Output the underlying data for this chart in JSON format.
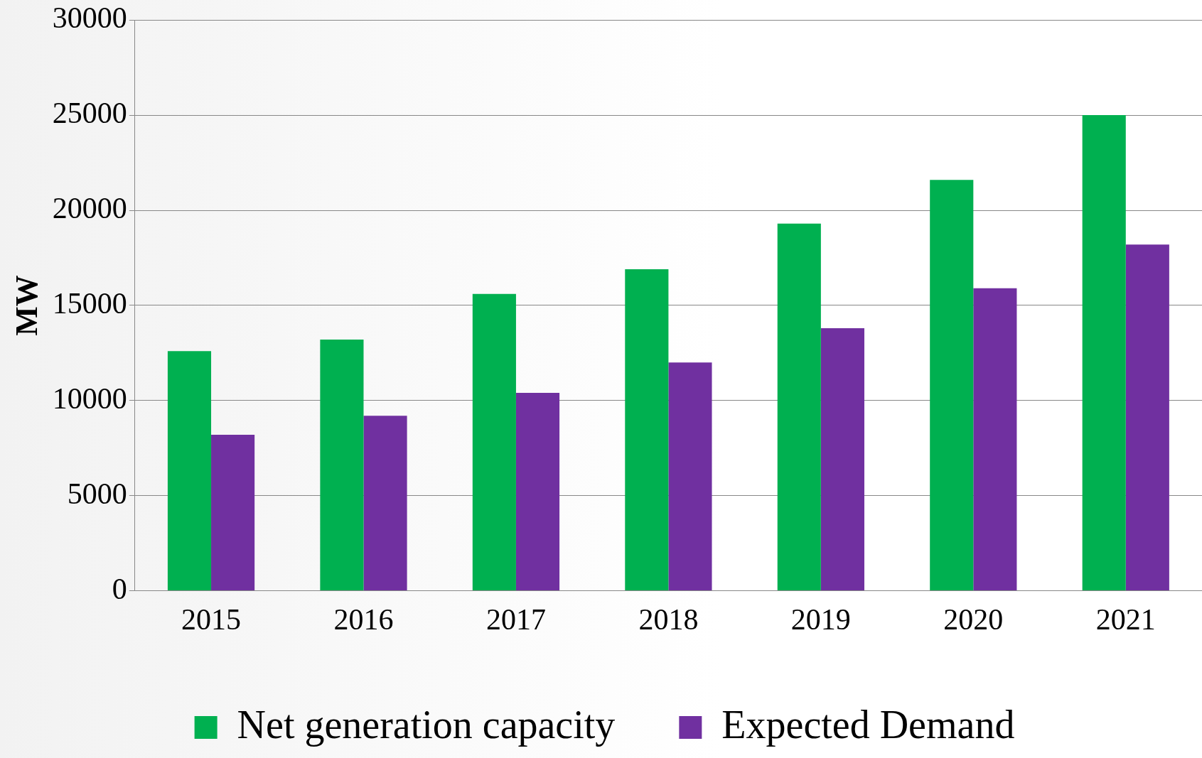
{
  "chart_data": {
    "type": "bar",
    "ylabel": "MW",
    "categories": [
      "2015",
      "2016",
      "2017",
      "2018",
      "2019",
      "2020",
      "2021"
    ],
    "series": [
      {
        "name": "Net generation capacity",
        "color": "#00b050",
        "values": [
          12600,
          13200,
          15600,
          16900,
          19300,
          21600,
          25000
        ]
      },
      {
        "name": "Expected Demand",
        "color": "#7030a0",
        "values": [
          8200,
          9200,
          10400,
          12000,
          13800,
          15900,
          18200
        ]
      }
    ],
    "ylim": [
      0,
      30000
    ],
    "yticks": [
      0,
      5000,
      10000,
      15000,
      20000,
      25000,
      30000
    ],
    "grid": "y",
    "legend": "bottom"
  }
}
